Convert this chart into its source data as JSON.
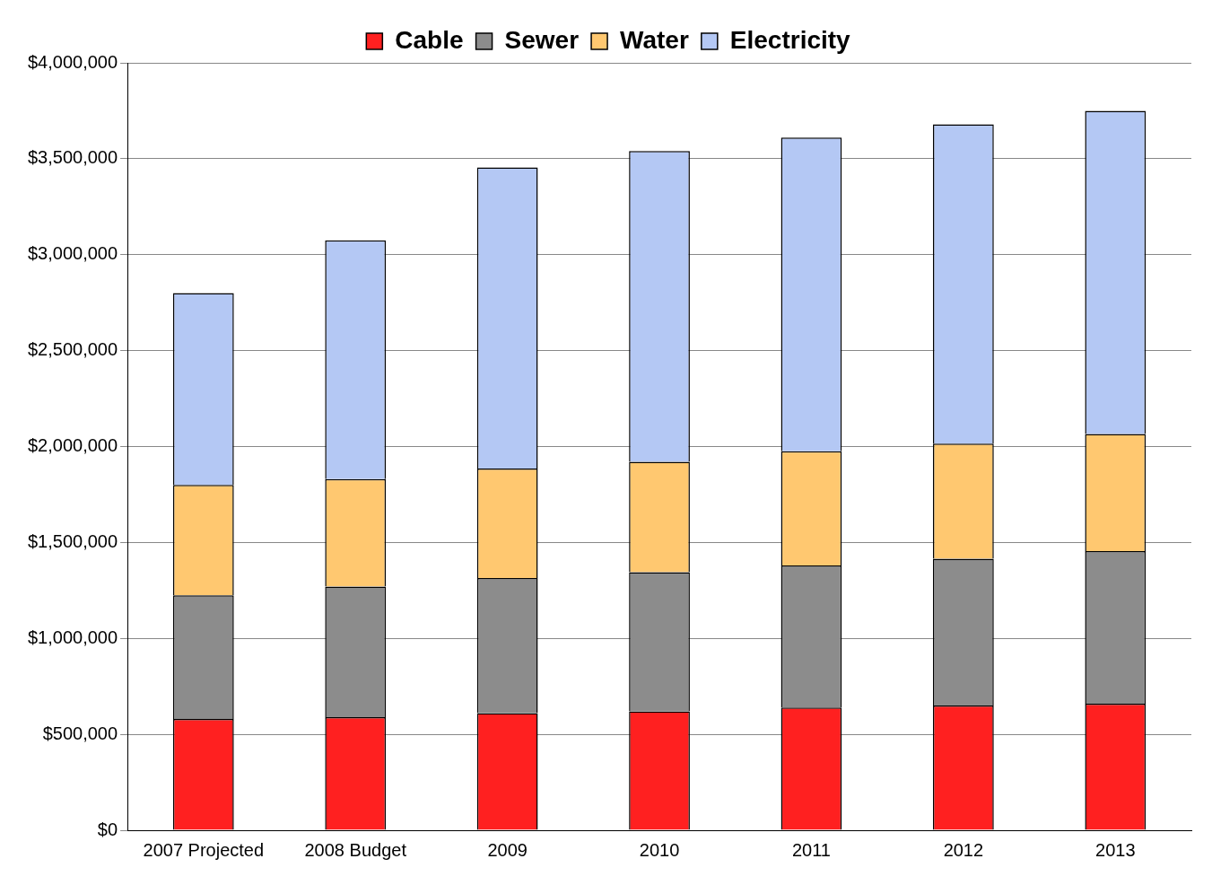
{
  "chart_data": {
    "type": "bar",
    "stacked": true,
    "categories": [
      "2007 Projected",
      "2008 Budget",
      "2009",
      "2010",
      "2011",
      "2012",
      "2013"
    ],
    "series": [
      {
        "name": "Cable",
        "color": "#ff2020",
        "values": [
          580000,
          590000,
          610000,
          620000,
          640000,
          650000,
          660000
        ]
      },
      {
        "name": "Sewer",
        "color": "#8c8c8c",
        "values": [
          645000,
          680000,
          705000,
          725000,
          740000,
          765000,
          795000
        ]
      },
      {
        "name": "Water",
        "color": "#ffc870",
        "values": [
          575000,
          560000,
          570000,
          575000,
          595000,
          600000,
          610000
        ]
      },
      {
        "name": "Electricity",
        "color": "#b4c8f4",
        "values": [
          1000000,
          1245000,
          1570000,
          1620000,
          1635000,
          1665000,
          1685000
        ]
      }
    ],
    "ylim": [
      0,
      4000000
    ],
    "yticks": [
      {
        "value": 0,
        "label": "$0"
      },
      {
        "value": 500000,
        "label": "$500,000"
      },
      {
        "value": 1000000,
        "label": "$1,000,000"
      },
      {
        "value": 1500000,
        "label": "$1,500,000"
      },
      {
        "value": 2000000,
        "label": "$2,000,000"
      },
      {
        "value": 2500000,
        "label": "$2,500,000"
      },
      {
        "value": 3000000,
        "label": "$3,000,000"
      },
      {
        "value": 3500000,
        "label": "$3,500,000"
      },
      {
        "value": 4000000,
        "label": "$4,000,000"
      }
    ],
    "grid": "y",
    "legend": "top"
  }
}
